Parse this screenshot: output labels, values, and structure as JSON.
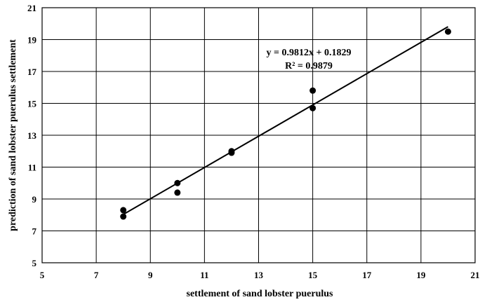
{
  "chart_data": {
    "type": "scatter",
    "title": "",
    "xlabel": "settlement of sand lobster puerulus",
    "ylabel": "prediction of sand lobster puerulus settlement",
    "xlim": [
      5,
      21
    ],
    "ylim": [
      5,
      21
    ],
    "xticks": [
      5,
      7,
      9,
      11,
      13,
      15,
      17,
      19,
      21
    ],
    "yticks": [
      5,
      7,
      9,
      11,
      13,
      15,
      17,
      19,
      21
    ],
    "grid": true,
    "legend": "none",
    "marker_color": "#000000",
    "points": [
      {
        "x": 8,
        "y": 8.3
      },
      {
        "x": 8,
        "y": 7.9
      },
      {
        "x": 10,
        "y": 10.0
      },
      {
        "x": 10,
        "y": 9.4
      },
      {
        "x": 12,
        "y": 12.0
      },
      {
        "x": 12,
        "y": 11.9
      },
      {
        "x": 15,
        "y": 15.8
      },
      {
        "x": 15,
        "y": 14.7
      },
      {
        "x": 20,
        "y": 19.5
      }
    ],
    "trendline": {
      "slope": 0.9812,
      "intercept": 0.1829,
      "x_range": [
        8,
        20
      ]
    },
    "annotations": {
      "equation": "y = 0.9812x + 0.1829",
      "r_squared": "R² = 0.9879"
    }
  }
}
